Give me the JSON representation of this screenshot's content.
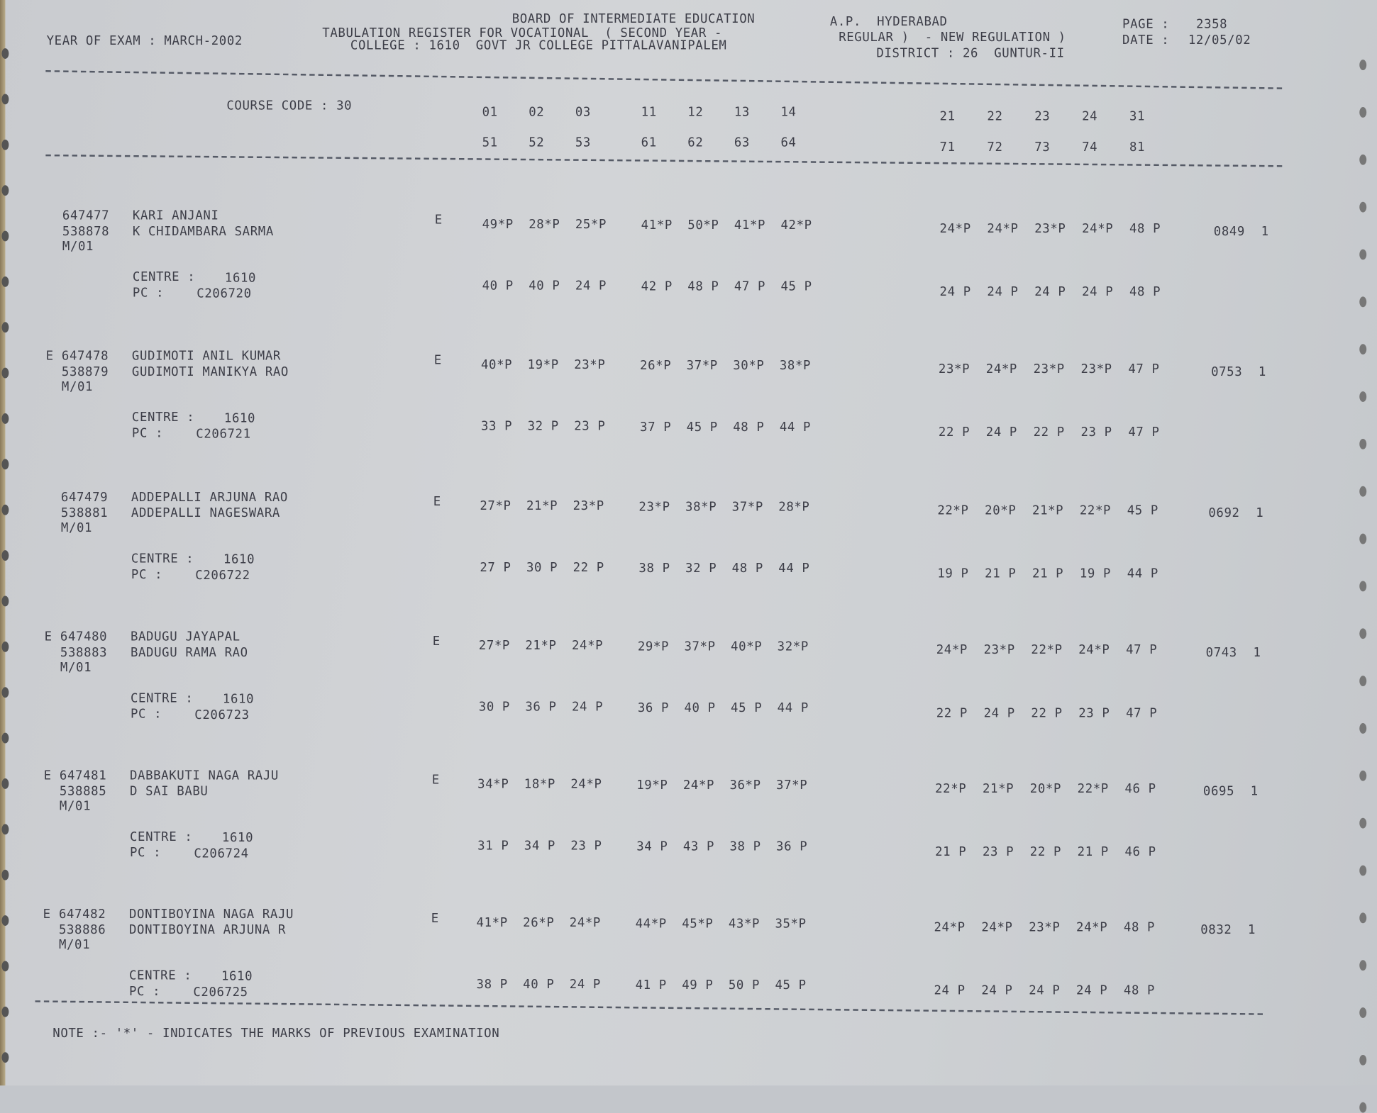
{
  "header": {
    "line1": "BOARD OF INTERMEDIATE EDUCATION",
    "state": "A.P.  HYDERABAD",
    "line2": "TABULATION REGISTER FOR VOCATIONAL  ( SECOND YEAR -",
    "line2b": "REGULAR )  - NEW REGULATION )",
    "year_of_exam": "YEAR OF EXAM : MARCH-2002",
    "college": "COLLEGE : 1610  GOVT JR COLLEGE PITTALAVANIPALEM",
    "district": "DISTRICT : 26  GUNTUR-II",
    "page_label": "PAGE :",
    "page_number": "2358",
    "date_label": "DATE :",
    "date": "12/05/02"
  },
  "columns": {
    "course_code": "COURSE CODE : 30",
    "row1": [
      "01",
      "02",
      "03",
      "11",
      "12",
      "13",
      "14",
      "21",
      "22",
      "23",
      "24",
      "31"
    ],
    "row2": [
      "51",
      "52",
      "53",
      "61",
      "62",
      "63",
      "64",
      "71",
      "72",
      "73",
      "74",
      "81"
    ]
  },
  "labels": {
    "centre": "CENTRE :",
    "pc": "PC :"
  },
  "students": [
    {
      "prefix": "",
      "roll": "647477",
      "name": "KARI ANJANI",
      "id2": "538878",
      "father": "K CHIDAMBARA SARMA",
      "category": "M/01",
      "flag": "E",
      "marks1": [
        "49*P",
        "28*P",
        "25*P",
        "41*P",
        "50*P",
        "41*P",
        "42*P",
        "24*P",
        "24*P",
        "23*P",
        "24*P",
        "48 P"
      ],
      "marks2": [
        "40 P",
        "40 P",
        "24 P",
        "42 P",
        "48 P",
        "47 P",
        "45 P",
        "24 P",
        "24 P",
        "24 P",
        "24 P",
        "48 P"
      ],
      "total": "0849",
      "result": "1",
      "centre": "1610",
      "pc": "C206720"
    },
    {
      "prefix": "E",
      "roll": "647478",
      "name": "GUDIMOTI ANIL KUMAR",
      "id2": "538879",
      "father": "GUDIMOTI MANIKYA RAO",
      "category": "M/01",
      "flag": "E",
      "marks1": [
        "40*P",
        "19*P",
        "23*P",
        "26*P",
        "37*P",
        "30*P",
        "38*P",
        "23*P",
        "24*P",
        "23*P",
        "23*P",
        "47 P"
      ],
      "marks2": [
        "33 P",
        "32 P",
        "23 P",
        "37 P",
        "45 P",
        "48 P",
        "44 P",
        "22 P",
        "24 P",
        "22 P",
        "23 P",
        "47 P"
      ],
      "total": "0753",
      "result": "1",
      "centre": "1610",
      "pc": "C206721"
    },
    {
      "prefix": "",
      "roll": "647479",
      "name": "ADDEPALLI ARJUNA RAO",
      "id2": "538881",
      "father": "ADDEPALLI NAGESWARA",
      "category": "M/01",
      "flag": "E",
      "marks1": [
        "27*P",
        "21*P",
        "23*P",
        "23*P",
        "38*P",
        "37*P",
        "28*P",
        "22*P",
        "20*P",
        "21*P",
        "22*P",
        "45 P"
      ],
      "marks2": [
        "27 P",
        "30 P",
        "22 P",
        "38 P",
        "32 P",
        "48 P",
        "44 P",
        "19 P",
        "21 P",
        "21 P",
        "19 P",
        "44 P"
      ],
      "total": "0692",
      "result": "1",
      "centre": "1610",
      "pc": "C206722"
    },
    {
      "prefix": "E",
      "roll": "647480",
      "name": "BADUGU JAYAPAL",
      "id2": "538883",
      "father": "BADUGU RAMA RAO",
      "category": "M/01",
      "flag": "E",
      "marks1": [
        "27*P",
        "21*P",
        "24*P",
        "29*P",
        "37*P",
        "40*P",
        "32*P",
        "24*P",
        "23*P",
        "22*P",
        "24*P",
        "47 P"
      ],
      "marks2": [
        "30 P",
        "36 P",
        "24 P",
        "36 P",
        "40 P",
        "45 P",
        "44 P",
        "22 P",
        "24 P",
        "22 P",
        "23 P",
        "47 P"
      ],
      "total": "0743",
      "result": "1",
      "centre": "1610",
      "pc": "C206723"
    },
    {
      "prefix": "E",
      "roll": "647481",
      "name": "DABBAKUTI NAGA RAJU",
      "id2": "538885",
      "father": "D SAI BABU",
      "category": "M/01",
      "flag": "E",
      "marks1": [
        "34*P",
        "18*P",
        "24*P",
        "19*P",
        "24*P",
        "36*P",
        "37*P",
        "22*P",
        "21*P",
        "20*P",
        "22*P",
        "46 P"
      ],
      "marks2": [
        "31 P",
        "34 P",
        "23 P",
        "34 P",
        "43 P",
        "38 P",
        "36 P",
        "21 P",
        "23 P",
        "22 P",
        "21 P",
        "46 P"
      ],
      "total": "0695",
      "result": "1",
      "centre": "1610",
      "pc": "C206724"
    },
    {
      "prefix": "E",
      "roll": "647482",
      "name": "DONTIBOYINA NAGA RAJU",
      "id2": "538886",
      "father": "DONTIBOYINA ARJUNA R",
      "category": "M/01",
      "flag": "E",
      "marks1": [
        "41*P",
        "26*P",
        "24*P",
        "44*P",
        "45*P",
        "43*P",
        "35*P",
        "24*P",
        "24*P",
        "23*P",
        "24*P",
        "48 P"
      ],
      "marks2": [
        "38 P",
        "40 P",
        "24 P",
        "41 P",
        "49 P",
        "50 P",
        "45 P",
        "24 P",
        "24 P",
        "24 P",
        "24 P",
        "48 P"
      ],
      "total": "0832",
      "result": "1",
      "centre": "1610",
      "pc": "C206725"
    }
  ],
  "note": "NOTE :- '*' - INDICATES THE MARKS OF PREVIOUS EXAMINATION"
}
